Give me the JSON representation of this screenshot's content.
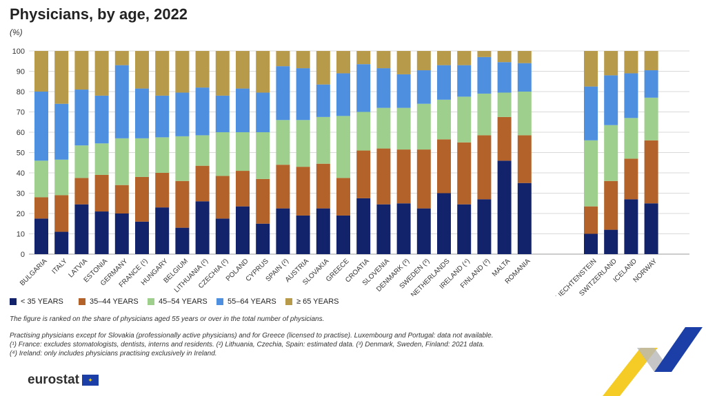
{
  "title": "Physicians, by age, 2022",
  "unit": "(%)",
  "legend": [
    {
      "label": "< 35 YEARS",
      "color": "#13236b"
    },
    {
      "label": "35–44 YEARS",
      "color": "#b3632a"
    },
    {
      "label": "45–54 YEARS",
      "color": "#9fcf8c"
    },
    {
      "label": "55–64 YEARS",
      "color": "#4f8fe0"
    },
    {
      "label": "≥ 65 YEARS",
      "color": "#b79a4a"
    }
  ],
  "notes": {
    "ranking": "The figure is ranked on the share of physicians aged 55 years or over in the total number of physicians.",
    "line1": "Practising physicians except for Slovakia (professionally active physicians) and for Greece (licensed to practise). Luxembourg and Portugal: data not available.",
    "line2": "(¹) France: excludes stomatologists, dentists, interns and residents. (²) Lithuania, Czechia, Spain: estimated data. (³) Denmark, Sweden, Finland: 2021 data.",
    "line3": "(⁴) Ireland: only includes physicians practising exclusively in Ireland."
  },
  "logo": "eurostat",
  "chart_data": {
    "type": "bar",
    "stacked": true,
    "ylim": [
      0,
      100
    ],
    "yticks": [
      0,
      10,
      20,
      30,
      40,
      50,
      60,
      70,
      80,
      90,
      100
    ],
    "categories": [
      "BULGARIA",
      "ITALY",
      "LATVIA",
      "ESTONIA",
      "GERMANY",
      "FRANCE (¹)",
      "HUNGARY",
      "BELGIUM",
      "LITHUANIA (²)",
      "CZECHIA (²)",
      "POLAND",
      "CYPRUS",
      "SPAIN (²)",
      "AUSTRIA",
      "SLOVAKIA",
      "GREECE",
      "CROATIA",
      "SLOVENIA",
      "DENMARK (³)",
      "SWEDEN (³)",
      "NETHERLANDS",
      "IRELAND (⁴)",
      "FINLAND (³)",
      "MALTA",
      "ROMANIA",
      "LIECHTENSTEIN",
      "SWITZERLAND",
      "ICELAND",
      "NORWAY"
    ],
    "series": [
      {
        "name": "< 35 YEARS",
        "color": "#13236b",
        "values": [
          17.5,
          11,
          24.5,
          21,
          20,
          16,
          23,
          13,
          26,
          17.5,
          23.5,
          15,
          22.5,
          19,
          22.5,
          19,
          27.5,
          24.5,
          25,
          22.5,
          30,
          24.5,
          27,
          46,
          35,
          10,
          12,
          27,
          25
        ]
      },
      {
        "name": "35–44 YEARS",
        "color": "#b3632a",
        "values": [
          10.5,
          18,
          13,
          18,
          14,
          22,
          17,
          23,
          17.5,
          21,
          17.5,
          22,
          21.5,
          24,
          22,
          18.5,
          23.5,
          27.5,
          26.5,
          29,
          26.5,
          30.5,
          31.5,
          21.5,
          23.5,
          13.5,
          24,
          20,
          31
        ]
      },
      {
        "name": "45–54 YEARS",
        "color": "#9fcf8c",
        "values": [
          18,
          17.5,
          16,
          15.5,
          23,
          19,
          17.5,
          22,
          15,
          21.5,
          19,
          23,
          22,
          23,
          23,
          30.5,
          19,
          20,
          20.5,
          22.5,
          19.5,
          22.5,
          20.5,
          12,
          21.5,
          32.5,
          27.5,
          20,
          21
        ]
      },
      {
        "name": "55–64 YEARS",
        "color": "#4f8fe0",
        "values": [
          34,
          27.5,
          27.5,
          23.5,
          36,
          24.5,
          20.5,
          21.5,
          23.5,
          18,
          21.5,
          19.5,
          26.5,
          25.5,
          16,
          21,
          23.5,
          19.5,
          16.5,
          16.5,
          17,
          15.5,
          18,
          15,
          14,
          26.5,
          24.5,
          22,
          13.5
        ]
      },
      {
        "name": "≥ 65 YEARS",
        "color": "#b79a4a",
        "values": [
          20,
          26,
          19,
          22,
          7,
          18.5,
          22,
          20.5,
          18,
          22,
          18.5,
          20.5,
          7.5,
          8.5,
          16.5,
          11,
          6.5,
          8.5,
          11.5,
          9.5,
          7,
          7,
          3,
          5.5,
          6,
          17.5,
          12,
          11,
          9.5
        ]
      }
    ]
  }
}
